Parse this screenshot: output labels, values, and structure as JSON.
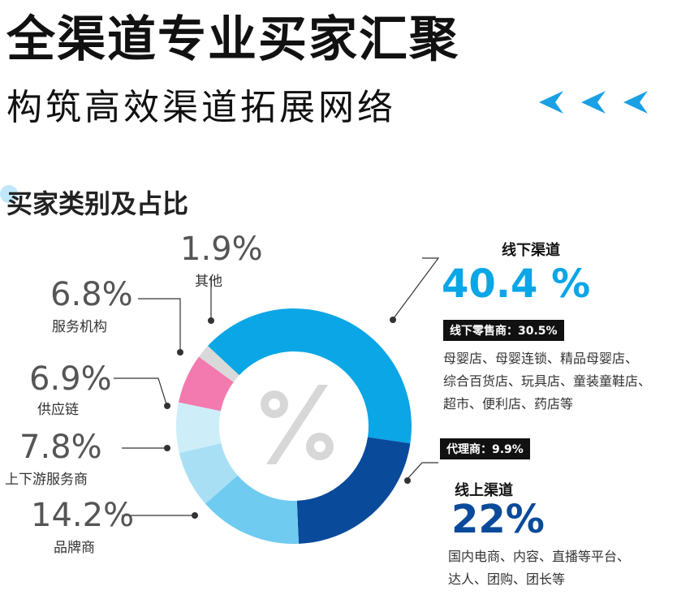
{
  "header": {
    "title": "全渠道专业买家汇聚",
    "subtitle": "构筑高效渠道拓展网络",
    "section_title": "买家类别及占比"
  },
  "colors": {
    "accent": "#0aa6e6",
    "navy": "#0a4a9a",
    "pink": "#f27aae",
    "light_blue_1": "#cdeef9",
    "light_blue_2": "#a8dff5",
    "light_blue_3": "#6fcbf0",
    "grey": "#d9d9d9"
  },
  "chart_data": {
    "type": "pie",
    "style": "donut",
    "center_icon": "percent-icon",
    "slices": [
      {
        "name": "线下渠道",
        "value": 40.4,
        "color": "#0aa6e6"
      },
      {
        "name": "线上渠道",
        "value": 22,
        "color": "#0a4a9a"
      },
      {
        "name": "品牌商",
        "value": 14.2,
        "color": "#6fcbf0"
      },
      {
        "name": "上下游服务商",
        "value": 7.8,
        "color": "#a8dff5"
      },
      {
        "name": "供应链",
        "value": 6.9,
        "color": "#cdeef9"
      },
      {
        "name": "服务机构",
        "value": 6.8,
        "color": "#f27aae"
      },
      {
        "name": "其他",
        "value": 1.9,
        "color": "#d9d9d9"
      }
    ]
  },
  "labels": {
    "other": {
      "pct": "1.9%",
      "name": "其他"
    },
    "service": {
      "pct": "6.8%",
      "name": "服务机构"
    },
    "supply": {
      "pct": "6.9%",
      "name": "供应链"
    },
    "updown": {
      "pct": "7.8%",
      "name": "上下游服务商"
    },
    "brand": {
      "pct": "14.2%",
      "name": "品牌商"
    }
  },
  "offline": {
    "title": "线下渠道",
    "value": "40.4 %",
    "badge_retail": "线下零售商：30.5%",
    "desc_lines": [
      "母婴店、母婴连锁、精品母婴店、",
      "综合百货店、玩具店、童装童鞋店、",
      "超市、便利店、药店等"
    ],
    "badge_agent": "代理商：9.9%"
  },
  "online": {
    "title": "线上渠道",
    "value": "22%",
    "desc_lines": [
      "国内电商、内容、直播等平台、",
      "达人、团购、团长等"
    ]
  }
}
